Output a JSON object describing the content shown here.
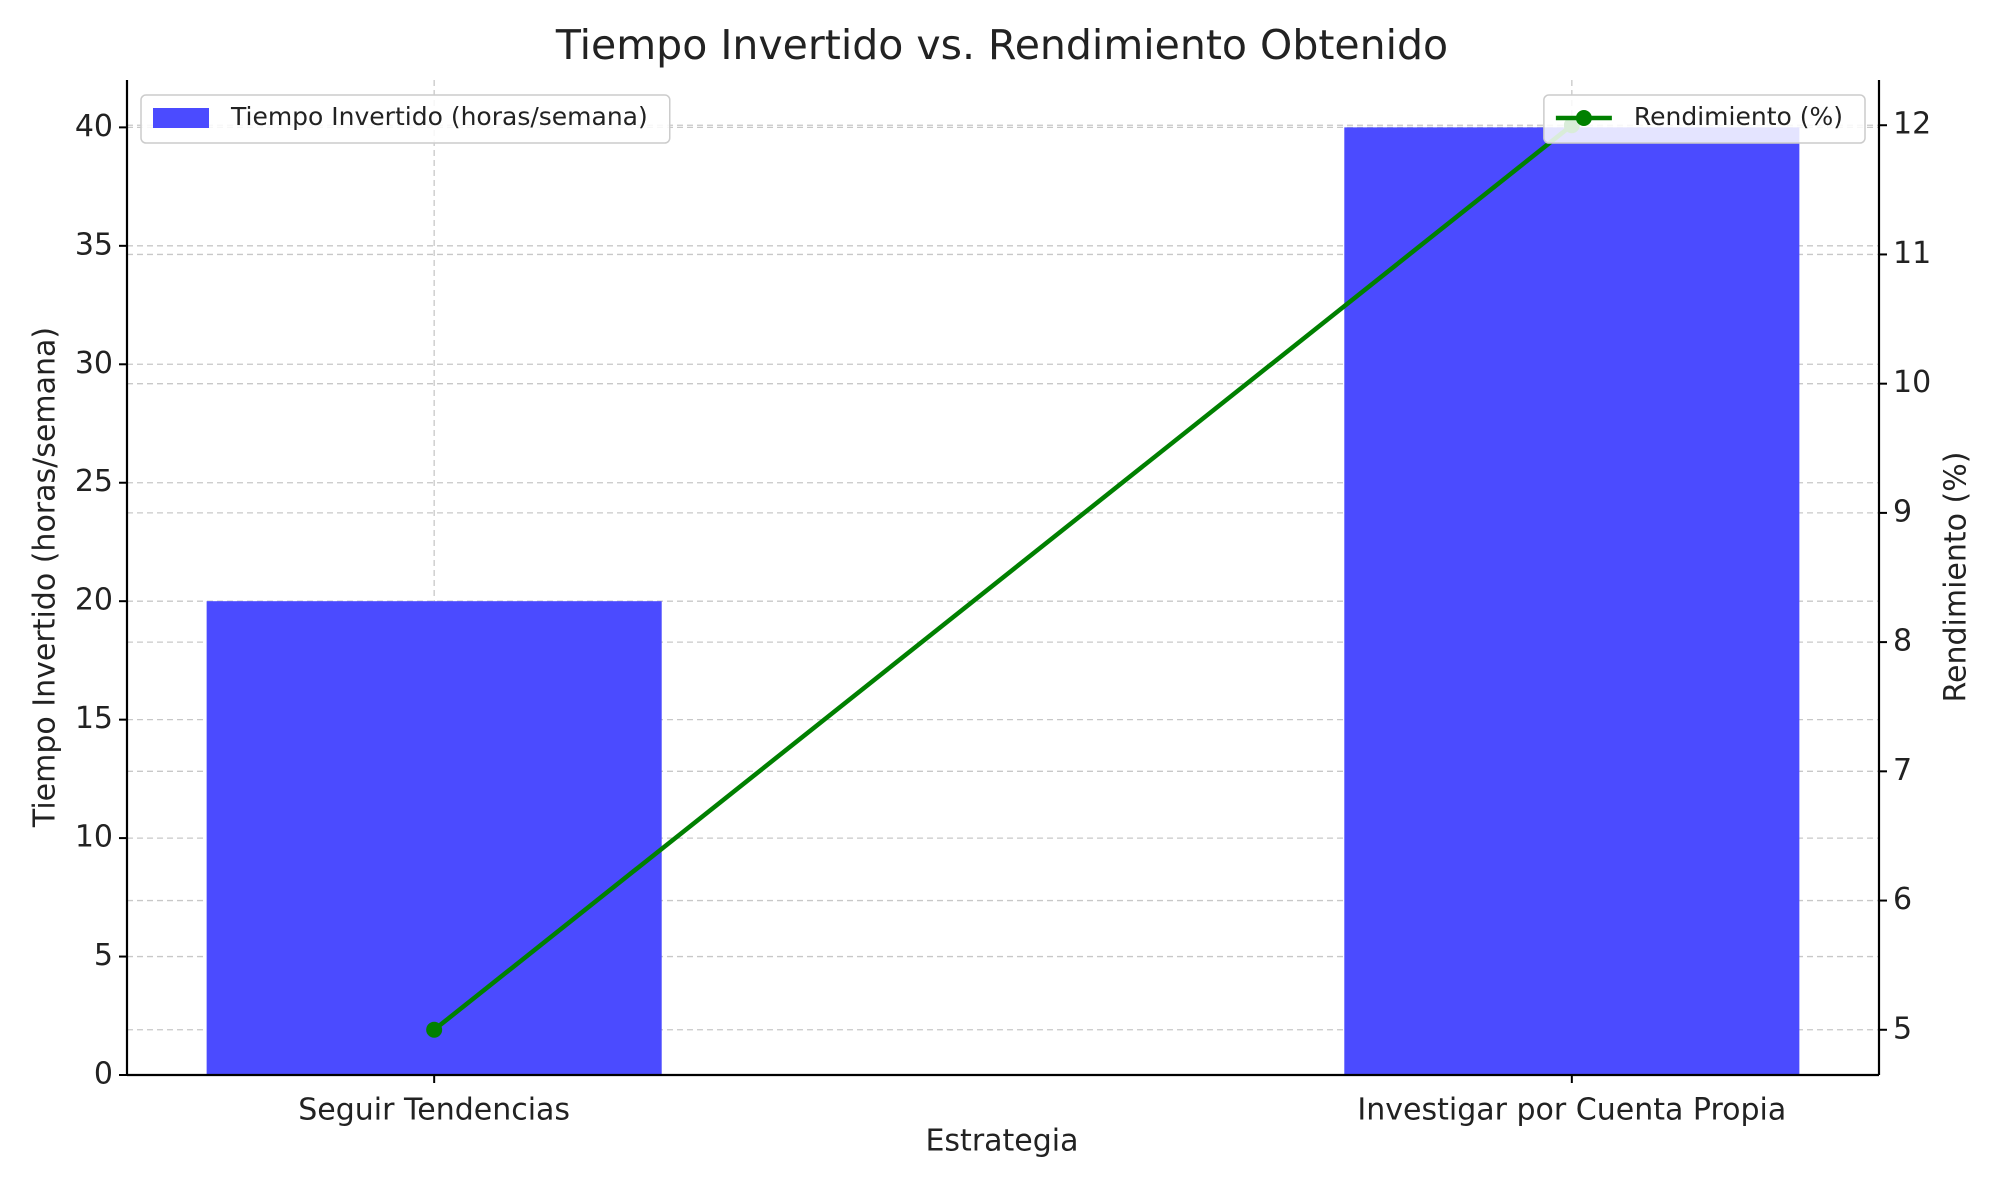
{
  "chart_data": {
    "type": "bar",
    "title": "Tiempo Invertido vs. Rendimiento Obtenido",
    "x_label": "Estrategia",
    "y_label": "Tiempo Invertido (horas/semana)",
    "y2_label": "Rendimiento (%)",
    "y_label_color": "#0000ff",
    "y2_label_color": "#008000",
    "categories": [
      "Seguir Tendencias",
      "Investigar por Cuenta Propia"
    ],
    "series": [
      {
        "name": "Tiempo Invertido (horas/semana)",
        "type": "bar",
        "color": "#4b4bff",
        "values": [
          20,
          40
        ],
        "legend": "upper left"
      },
      {
        "name": "Rendimiento (%)",
        "type": "line",
        "axis": "y2",
        "color": "#008000",
        "values": [
          5,
          12
        ],
        "legend": "upper right"
      }
    ],
    "ylim": [
      0,
      42
    ],
    "yticks": [
      0,
      5,
      10,
      15,
      20,
      25,
      30,
      35,
      40
    ],
    "y2lim": [
      4.65,
      12.35
    ],
    "y2ticks": [
      5,
      6,
      7,
      8,
      9,
      10,
      11,
      12
    ],
    "grid": true
  }
}
